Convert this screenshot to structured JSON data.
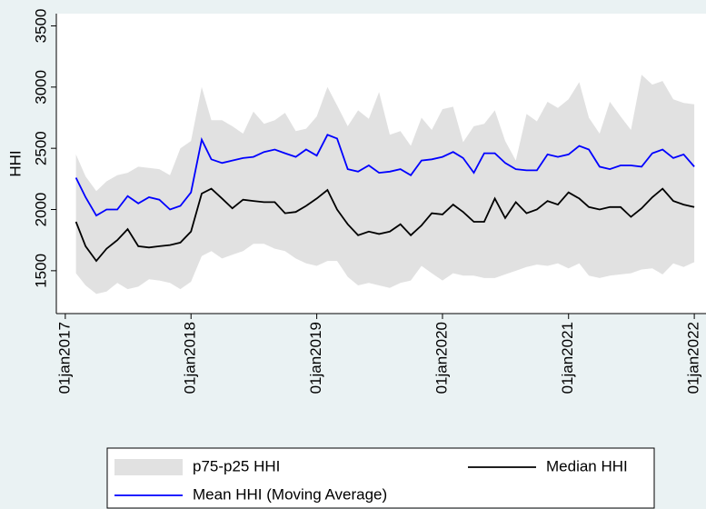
{
  "chart_data": {
    "type": "line",
    "y_label": "HHI",
    "x": [
      "2017-02-01",
      "2017-03-01",
      "2017-04-01",
      "2017-05-01",
      "2017-06-01",
      "2017-07-01",
      "2017-08-01",
      "2017-09-01",
      "2017-10-01",
      "2017-11-01",
      "2017-12-01",
      "2018-01-01",
      "2018-02-01",
      "2018-03-01",
      "2018-04-01",
      "2018-05-01",
      "2018-06-01",
      "2018-07-01",
      "2018-08-01",
      "2018-09-01",
      "2018-10-01",
      "2018-11-01",
      "2018-12-01",
      "2019-01-01",
      "2019-02-01",
      "2019-03-01",
      "2019-04-01",
      "2019-05-01",
      "2019-06-01",
      "2019-07-01",
      "2019-08-01",
      "2019-09-01",
      "2019-10-01",
      "2019-11-01",
      "2019-12-01",
      "2020-01-01",
      "2020-02-01",
      "2020-03-01",
      "2020-04-01",
      "2020-05-01",
      "2020-06-01",
      "2020-07-01",
      "2020-08-01",
      "2020-09-01",
      "2020-10-01",
      "2020-11-01",
      "2020-12-01",
      "2021-01-01",
      "2021-02-01",
      "2021-03-01",
      "2021-04-01",
      "2021-05-01",
      "2021-06-01",
      "2021-07-01",
      "2021-08-01",
      "2021-09-01",
      "2021-10-01",
      "2021-11-01",
      "2021-12-01",
      "2022-01-01"
    ],
    "series": [
      {
        "name": "p75-p25 HHI",
        "color": "#e1e1e1",
        "kind": "range",
        "high": [
          2450,
          2270,
          2150,
          2230,
          2280,
          2300,
          2350,
          2340,
          2330,
          2280,
          2500,
          2560,
          3000,
          2730,
          2730,
          2680,
          2620,
          2800,
          2700,
          2730,
          2790,
          2640,
          2660,
          2760,
          3000,
          2850,
          2680,
          2810,
          2740,
          2960,
          2610,
          2640,
          2520,
          2750,
          2650,
          2820,
          2840,
          2550,
          2680,
          2700,
          2810,
          2560,
          2400,
          2780,
          2720,
          2880,
          2830,
          2900,
          3040,
          2750,
          2620,
          2880,
          2760,
          2650,
          3100,
          3020,
          3050,
          2900,
          2870,
          2860
        ],
        "low": [
          1480,
          1380,
          1310,
          1330,
          1400,
          1350,
          1370,
          1430,
          1420,
          1400,
          1350,
          1410,
          1620,
          1660,
          1600,
          1630,
          1660,
          1720,
          1720,
          1680,
          1660,
          1600,
          1560,
          1540,
          1580,
          1580,
          1450,
          1380,
          1400,
          1380,
          1360,
          1400,
          1420,
          1540,
          1480,
          1420,
          1480,
          1460,
          1460,
          1440,
          1440,
          1470,
          1500,
          1530,
          1550,
          1540,
          1560,
          1520,
          1560,
          1460,
          1440,
          1460,
          1470,
          1480,
          1510,
          1520,
          1470,
          1560,
          1530,
          1570
        ]
      },
      {
        "name": "Median HHI",
        "color": "#000000",
        "kind": "line",
        "values": [
          1900,
          1700,
          1580,
          1680,
          1750,
          1840,
          1700,
          1690,
          1700,
          1710,
          1730,
          1820,
          2130,
          2170,
          2090,
          2010,
          2080,
          2070,
          2060,
          2060,
          1970,
          1980,
          2030,
          2090,
          2160,
          2000,
          1880,
          1790,
          1820,
          1800,
          1820,
          1880,
          1790,
          1870,
          1970,
          1960,
          2040,
          1980,
          1900,
          1900,
          2090,
          1930,
          2060,
          1970,
          2000,
          2070,
          2040,
          2140,
          2090,
          2020,
          2000,
          2020,
          2020,
          1940,
          2010,
          2100,
          2170,
          2070,
          2040,
          2020
        ]
      },
      {
        "name": "Mean HHI (Moving Average)",
        "color": "#0000ff",
        "kind": "line",
        "values": [
          2260,
          2100,
          1950,
          2000,
          2000,
          2110,
          2050,
          2100,
          2080,
          2000,
          2030,
          2140,
          2570,
          2410,
          2380,
          2400,
          2420,
          2430,
          2470,
          2490,
          2460,
          2430,
          2490,
          2440,
          2610,
          2580,
          2330,
          2310,
          2360,
          2300,
          2310,
          2330,
          2280,
          2400,
          2410,
          2430,
          2470,
          2420,
          2300,
          2460,
          2460,
          2380,
          2330,
          2320,
          2320,
          2450,
          2430,
          2450,
          2520,
          2490,
          2350,
          2330,
          2360,
          2360,
          2350,
          2460,
          2490,
          2420,
          2450,
          2350
        ]
      }
    ],
    "ylim": [
      1150,
      3600
    ],
    "yticks": [
      1500,
      2000,
      2500,
      3000,
      3500
    ],
    "xlim": [
      "2016-12-06",
      "2022-02-04"
    ],
    "xticks": [
      {
        "value": "2017-01-01",
        "label": "01jan2017"
      },
      {
        "value": "2018-01-01",
        "label": "01jan2018"
      },
      {
        "value": "2019-01-01",
        "label": "01jan2019"
      },
      {
        "value": "2020-01-01",
        "label": "01jan2020"
      },
      {
        "value": "2021-01-01",
        "label": "01jan2021"
      },
      {
        "value": "2022-01-01",
        "label": "01jan2022"
      }
    ],
    "grid": false
  }
}
